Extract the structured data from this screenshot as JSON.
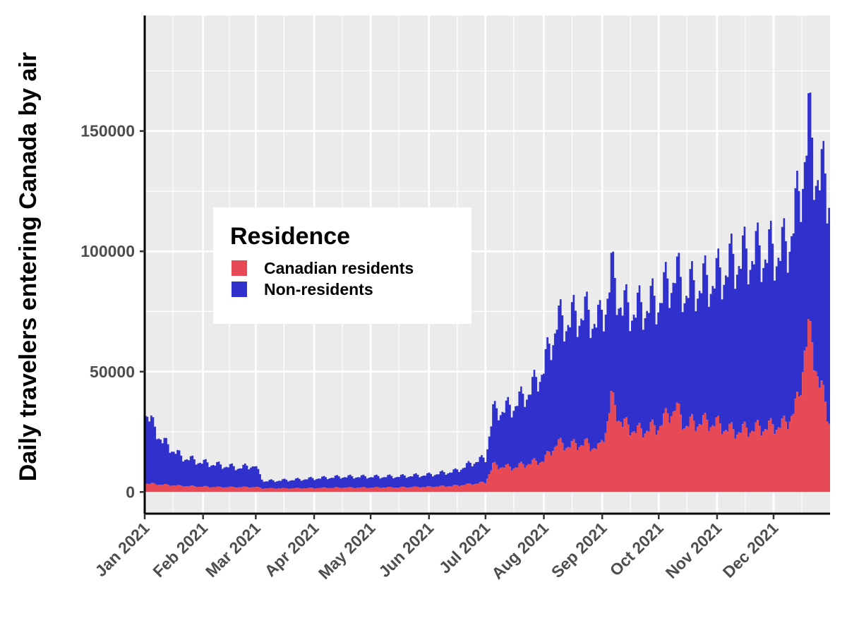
{
  "chart_data": {
    "type": "area",
    "stacked": true,
    "title": "",
    "xlabel": "",
    "ylabel": "Daily travelers entering Canada by air",
    "ylim": [
      -9000,
      198000
    ],
    "x_range": [
      "2021-01-01",
      "2021-12-31"
    ],
    "y_ticks": [
      0,
      50000,
      100000,
      150000
    ],
    "y_tick_labels": [
      "0",
      "50000",
      "100000",
      "150000"
    ],
    "x_ticks": [
      "2021-01-01",
      "2021-02-01",
      "2021-03-01",
      "2021-04-01",
      "2021-05-01",
      "2021-06-01",
      "2021-07-01",
      "2021-08-01",
      "2021-09-01",
      "2021-10-01",
      "2021-11-01",
      "2021-12-01"
    ],
    "x_tick_labels": [
      "Jan 2021",
      "Feb 2021",
      "Mar 2021",
      "Apr 2021",
      "May 2021",
      "Jun 2021",
      "Jul 2021",
      "Aug 2021",
      "Sep 2021",
      "Oct 2021",
      "Nov 2021",
      "Dec 2021"
    ],
    "grid": true,
    "background": "#ebebeb",
    "legend": {
      "title": "Residence",
      "position": "inside-left"
    },
    "series": [
      {
        "name": "Canadian residents",
        "color": "#e84a55",
        "points": [
          [
            "2021-01-01",
            3500
          ],
          [
            "2021-01-10",
            3000
          ],
          [
            "2021-01-20",
            2500
          ],
          [
            "2021-01-31",
            2200
          ],
          [
            "2021-02-10",
            2000
          ],
          [
            "2021-02-20",
            2000
          ],
          [
            "2021-02-28",
            2000
          ],
          [
            "2021-03-05",
            1500
          ],
          [
            "2021-03-20",
            1500
          ],
          [
            "2021-04-01",
            1600
          ],
          [
            "2021-04-15",
            1800
          ],
          [
            "2021-05-01",
            1800
          ],
          [
            "2021-05-15",
            1900
          ],
          [
            "2021-06-01",
            2100
          ],
          [
            "2021-06-15",
            2600
          ],
          [
            "2021-06-25",
            3400
          ],
          [
            "2021-07-01",
            4000
          ],
          [
            "2021-07-05",
            11000
          ],
          [
            "2021-07-15",
            10000
          ],
          [
            "2021-07-25",
            12000
          ],
          [
            "2021-08-01",
            13000
          ],
          [
            "2021-08-08",
            20000
          ],
          [
            "2021-08-15",
            19000
          ],
          [
            "2021-08-22",
            20000
          ],
          [
            "2021-08-31",
            18000
          ],
          [
            "2021-09-03",
            26000
          ],
          [
            "2021-09-06",
            38000
          ],
          [
            "2021-09-12",
            28000
          ],
          [
            "2021-09-20",
            25000
          ],
          [
            "2021-10-01",
            27000
          ],
          [
            "2021-10-10",
            35000
          ],
          [
            "2021-10-15",
            28000
          ],
          [
            "2021-10-25",
            29000
          ],
          [
            "2021-11-01",
            28000
          ],
          [
            "2021-11-10",
            25000
          ],
          [
            "2021-11-20",
            26000
          ],
          [
            "2021-12-01",
            27000
          ],
          [
            "2021-12-08",
            28000
          ],
          [
            "2021-12-15",
            38000
          ],
          [
            "2021-12-18",
            60000
          ],
          [
            "2021-12-20",
            65000
          ],
          [
            "2021-12-23",
            57000
          ],
          [
            "2021-12-26",
            45000
          ],
          [
            "2021-12-31",
            30000
          ]
        ]
      },
      {
        "name": "Non-residents",
        "color": "#3030cc",
        "points": [
          [
            "2021-01-01",
            30000
          ],
          [
            "2021-01-05",
            24000
          ],
          [
            "2021-01-10",
            18000
          ],
          [
            "2021-01-20",
            12000
          ],
          [
            "2021-01-31",
            10000
          ],
          [
            "2021-02-10",
            9000
          ],
          [
            "2021-02-20",
            8000
          ],
          [
            "2021-02-28",
            9000
          ],
          [
            "2021-03-05",
            3000
          ],
          [
            "2021-03-20",
            3500
          ],
          [
            "2021-04-01",
            4000
          ],
          [
            "2021-04-15",
            4500
          ],
          [
            "2021-05-01",
            4500
          ],
          [
            "2021-05-15",
            4500
          ],
          [
            "2021-06-01",
            5000
          ],
          [
            "2021-06-15",
            6000
          ],
          [
            "2021-06-25",
            9000
          ],
          [
            "2021-07-01",
            10000
          ],
          [
            "2021-07-05",
            22000
          ],
          [
            "2021-07-15",
            25000
          ],
          [
            "2021-07-25",
            30000
          ],
          [
            "2021-08-01",
            38000
          ],
          [
            "2021-08-08",
            50000
          ],
          [
            "2021-08-15",
            52000
          ],
          [
            "2021-08-22",
            54000
          ],
          [
            "2021-08-31",
            52000
          ],
          [
            "2021-09-06",
            52000
          ],
          [
            "2021-09-12",
            48000
          ],
          [
            "2021-09-20",
            50000
          ],
          [
            "2021-10-01",
            52000
          ],
          [
            "2021-10-10",
            55000
          ],
          [
            "2021-10-15",
            55000
          ],
          [
            "2021-10-25",
            57000
          ],
          [
            "2021-11-01",
            60000
          ],
          [
            "2021-11-10",
            70000
          ],
          [
            "2021-11-20",
            72000
          ],
          [
            "2021-12-01",
            72000
          ],
          [
            "2021-12-08",
            72000
          ],
          [
            "2021-12-15",
            82000
          ],
          [
            "2021-12-18",
            80000
          ],
          [
            "2021-12-20",
            85000
          ],
          [
            "2021-12-23",
            80000
          ],
          [
            "2021-12-26",
            85000
          ],
          [
            "2021-12-31",
            95000
          ]
        ]
      }
    ]
  }
}
